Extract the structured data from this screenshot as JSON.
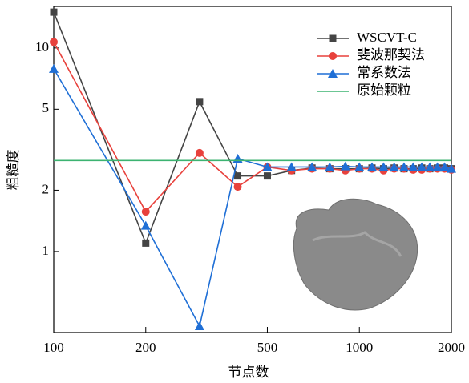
{
  "chart_data": {
    "type": "line",
    "x_label": "节点数",
    "y_label": "粗糙度",
    "x": [
      100,
      200,
      300,
      400,
      500,
      600,
      700,
      800,
      900,
      1000,
      1100,
      1200,
      1300,
      1400,
      1500,
      1600,
      1700,
      1800,
      1900,
      2000
    ],
    "series": [
      {
        "name": "WSCVT-C",
        "color": "#444444",
        "marker": "square",
        "values": [
          15,
          1.1,
          5.45,
          2.35,
          2.35,
          2.5,
          2.57,
          2.55,
          2.55,
          2.55,
          2.57,
          2.55,
          2.57,
          2.55,
          2.55,
          2.57,
          2.55,
          2.57,
          2.57,
          2.55
        ]
      },
      {
        "name": "斐波那契法",
        "color": "#e8413c",
        "marker": "circle",
        "values": [
          10.7,
          1.57,
          3.05,
          2.08,
          2.6,
          2.5,
          2.55,
          2.55,
          2.5,
          2.55,
          2.55,
          2.5,
          2.55,
          2.55,
          2.52,
          2.52,
          2.55,
          2.55,
          2.55,
          2.52
        ]
      },
      {
        "name": "常系数法",
        "color": "#1f6fd6",
        "marker": "triangle",
        "values": [
          7.9,
          1.34,
          0.43,
          2.86,
          2.6,
          2.6,
          2.6,
          2.6,
          2.62,
          2.6,
          2.6,
          2.6,
          2.6,
          2.6,
          2.6,
          2.6,
          2.6,
          2.6,
          2.6,
          2.55
        ]
      },
      {
        "name": "原始颗粒",
        "color": "#3cb371",
        "marker": "none",
        "values": [
          2.8,
          2.8,
          2.8,
          2.8,
          2.8,
          2.8,
          2.8,
          2.8,
          2.8,
          2.8,
          2.8,
          2.8,
          2.8,
          2.8,
          2.8,
          2.8,
          2.8,
          2.8,
          2.8,
          2.8
        ]
      }
    ],
    "xlim": [
      100,
      2000
    ],
    "ylim": [
      0.4,
      16
    ],
    "x_log": true,
    "y_log": true,
    "xticks": [
      100,
      200,
      500,
      1000,
      2000
    ],
    "yticks": [
      1,
      2,
      5,
      10
    ],
    "legend": "upper right"
  }
}
